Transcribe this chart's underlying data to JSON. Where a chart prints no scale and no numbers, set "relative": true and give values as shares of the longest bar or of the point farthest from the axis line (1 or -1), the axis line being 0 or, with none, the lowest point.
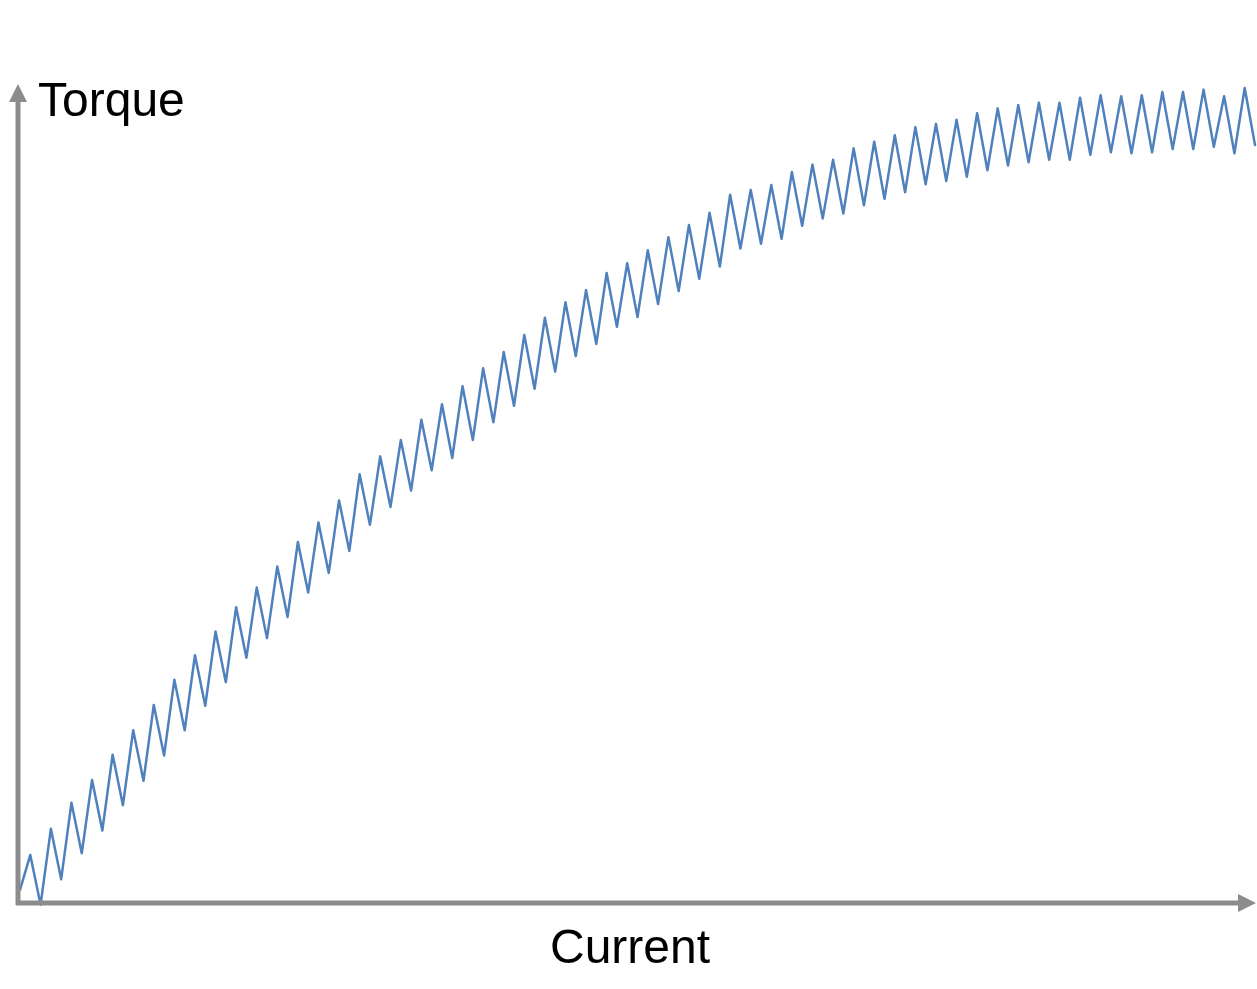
{
  "chart_data": {
    "type": "line",
    "relative": true,
    "xlabel": "Current",
    "ylabel": "Torque",
    "categories": [
      null,
      null,
      null,
      null,
      null,
      null,
      null,
      null,
      null,
      null,
      null,
      null,
      null,
      null,
      null,
      null,
      null,
      null,
      null,
      null,
      null,
      null,
      null,
      null,
      null,
      null,
      null,
      null,
      null,
      null,
      null,
      null,
      null,
      null,
      null,
      null,
      null,
      null,
      null,
      null,
      null,
      null,
      null,
      null,
      null,
      null,
      null,
      null,
      null,
      null,
      null,
      null,
      null,
      null,
      null,
      null,
      null,
      null,
      null,
      null,
      null,
      null,
      null,
      null,
      null,
      null,
      null,
      null,
      null,
      null,
      null,
      null,
      null,
      null,
      null,
      null,
      null,
      null,
      null,
      null,
      null,
      null,
      null,
      null,
      null,
      null,
      null,
      null,
      null,
      null,
      null,
      null,
      null,
      null,
      null,
      null,
      null,
      null,
      null,
      null,
      null,
      null,
      null,
      null,
      null,
      null,
      null,
      null,
      null,
      null,
      null,
      null,
      null,
      null,
      null,
      null,
      null,
      null,
      null,
      null,
      null
    ],
    "series": [
      {
        "color": "#4f81bd",
        "values": [
          0.016,
          0.059,
          -0.002,
          0.091,
          0.029,
          0.123,
          0.061,
          0.151,
          0.089,
          0.182,
          0.12,
          0.212,
          0.15,
          0.243,
          0.181,
          0.274,
          0.212,
          0.304,
          0.242,
          0.333,
          0.271,
          0.363,
          0.301,
          0.387,
          0.325,
          0.413,
          0.351,
          0.443,
          0.381,
          0.467,
          0.405,
          0.494,
          0.432,
          0.526,
          0.464,
          0.548,
          0.486,
          0.568,
          0.506,
          0.593,
          0.531,
          0.612,
          0.546,
          0.634,
          0.568,
          0.656,
          0.59,
          0.676,
          0.61,
          0.697,
          0.631,
          0.718,
          0.652,
          0.737,
          0.671,
          0.752,
          0.686,
          0.773,
          0.707,
          0.785,
          0.719,
          0.801,
          0.735,
          0.817,
          0.751,
          0.832,
          0.766,
          0.847,
          0.781,
          0.869,
          0.803,
          0.875,
          0.809,
          0.881,
          0.815,
          0.897,
          0.831,
          0.906,
          0.84,
          0.912,
          0.846,
          0.926,
          0.856,
          0.934,
          0.864,
          0.942,
          0.872,
          0.952,
          0.882,
          0.956,
          0.886,
          0.961,
          0.891,
          0.969,
          0.899,
          0.975,
          0.905,
          0.979,
          0.909,
          0.982,
          0.912,
          0.982,
          0.912,
          0.988,
          0.918,
          0.991,
          0.921,
          0.99,
          0.92,
          0.991,
          0.921,
          0.995,
          0.925,
          0.995,
          0.925,
          0.998,
          0.928,
          0.99,
          0.92,
          1.0,
          0.93
        ]
      }
    ]
  }
}
